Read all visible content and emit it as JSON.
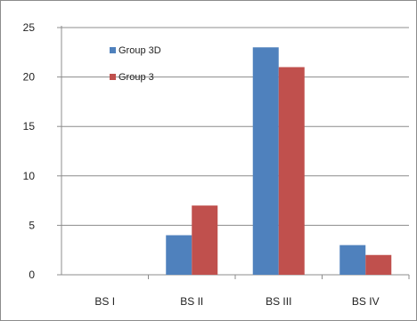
{
  "chart_data": {
    "type": "bar",
    "title": "",
    "xlabel": "",
    "ylabel": "",
    "categories": [
      "BS I",
      "BS II",
      "BS III",
      "BS IV"
    ],
    "series": [
      {
        "name": "Group 3D",
        "color": "#4f81bd",
        "values": [
          0,
          4,
          23,
          3
        ]
      },
      {
        "name": "Group 3",
        "color": "#c0504d",
        "values": [
          0,
          7,
          21,
          2
        ]
      }
    ],
    "ylim": [
      0,
      25
    ],
    "yticks": [
      "0",
      "5",
      "10",
      "15",
      "20",
      "25"
    ],
    "grid": true,
    "legend_position": "top-left"
  }
}
